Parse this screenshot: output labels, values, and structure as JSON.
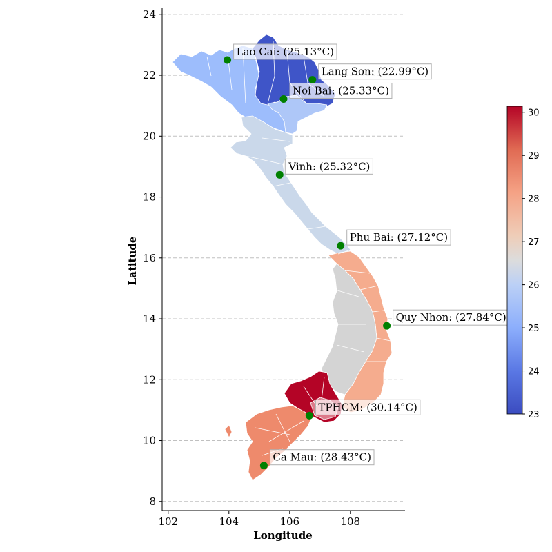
{
  "figure": {
    "xlabel": "Longitude",
    "ylabel": "Latitude",
    "xlim": [
      101.8,
      109.8
    ],
    "ylim": [
      7.7,
      24.2
    ],
    "x_ticks": [
      102,
      104,
      106,
      108
    ],
    "y_ticks": [
      8,
      10,
      12,
      14,
      16,
      18,
      20,
      22,
      24
    ],
    "grid": "horizontal dashed"
  },
  "colorbar": {
    "min": 23.0,
    "max": 30.14,
    "ticks": [
      23,
      24,
      25,
      26,
      27,
      28,
      29,
      30
    ],
    "colormap": "coolwarm"
  },
  "chart_data": {
    "type": "scatter",
    "stations": [
      {
        "name": "Lao Cai",
        "lon": 103.95,
        "lat": 22.5,
        "temp": 25.13,
        "label": "Lao Cai: (25.13°C)"
      },
      {
        "name": "Lang Son",
        "lon": 106.75,
        "lat": 21.85,
        "temp": 22.99,
        "label": "Lang Son: (22.99°C)"
      },
      {
        "name": "Noi Bai",
        "lon": 105.8,
        "lat": 21.22,
        "temp": 25.33,
        "label": "Noi Bai: (25.33°C)"
      },
      {
        "name": "Vinh",
        "lon": 105.67,
        "lat": 18.73,
        "temp": 25.32,
        "label": "Vinh: (25.32°C)"
      },
      {
        "name": "Phu Bai",
        "lon": 107.68,
        "lat": 16.4,
        "temp": 27.12,
        "label": "Phu Bai: (27.12°C)"
      },
      {
        "name": "Quy Nhon",
        "lon": 109.2,
        "lat": 13.77,
        "temp": 27.84,
        "label": "Quy Nhon: (27.84°C)"
      },
      {
        "name": "TPHCM",
        "lon": 106.65,
        "lat": 10.82,
        "temp": 30.14,
        "label": "TPHCM: (30.14°C)"
      },
      {
        "name": "Ca Mau",
        "lon": 105.15,
        "lat": 9.18,
        "temp": 28.43,
        "label": "Ca Mau: (28.43°C)"
      }
    ],
    "colors": {
      "marker": "#008000",
      "label_box_edge": "#b0b0b0",
      "province_edge": "#ffffff",
      "grid": "#c0c0c0"
    }
  }
}
